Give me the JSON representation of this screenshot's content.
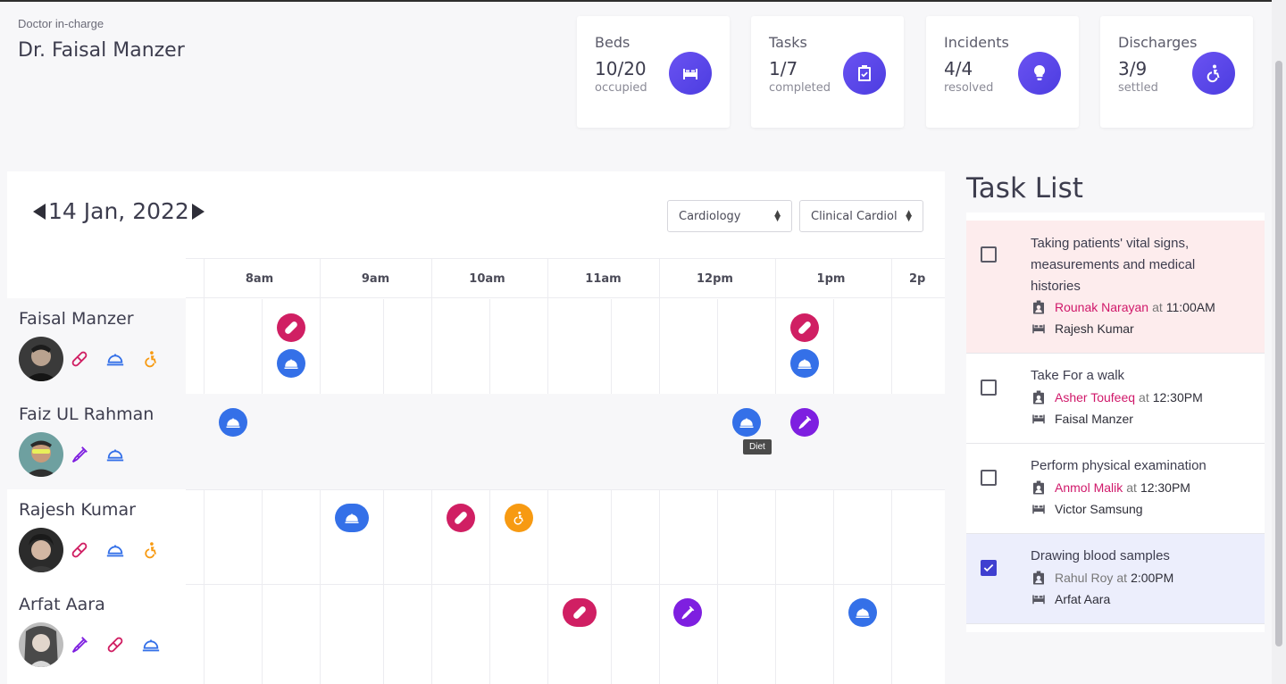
{
  "doctor": {
    "label": "Doctor in-charge",
    "name": "Dr. Faisal Manzer"
  },
  "stats": [
    {
      "title": "Beds",
      "value": "10/20",
      "sub": "occupied",
      "icon": "bed-icon"
    },
    {
      "title": "Tasks",
      "value": "1/7",
      "sub": "completed",
      "icon": "clipboard-check-icon"
    },
    {
      "title": "Incidents",
      "value": "4/4",
      "sub": "resolved",
      "icon": "lightbulb-icon"
    },
    {
      "title": "Discharges",
      "value": "3/9",
      "sub": "settled",
      "icon": "accessible-icon"
    }
  ],
  "schedule": {
    "date": "14 Jan, 2022",
    "department": "Cardiology",
    "unit": "Clinical Cardiol",
    "hours": [
      "8am",
      "9am",
      "10am",
      "11am",
      "12pm",
      "1pm",
      "2p"
    ],
    "patients": [
      {
        "name": "Faisal Manzer",
        "icons": [
          "pill",
          "diet",
          "walk"
        ]
      },
      {
        "name": "Faiz UL Rahman",
        "icons": [
          "lab",
          "diet"
        ]
      },
      {
        "name": "Rajesh Kumar",
        "icons": [
          "pill",
          "diet",
          "walk"
        ]
      },
      {
        "name": "Arfat Aara",
        "icons": [
          "lab",
          "pill",
          "diet"
        ]
      }
    ],
    "tooltip": "Diet"
  },
  "task_list": {
    "title": "Task List",
    "tasks": [
      {
        "title": "Taking patients' vital signs, measurements and medical histories",
        "assignee": "Rounak Narayan",
        "at": "at",
        "time": "11:00AM",
        "patient": "Rajesh Kumar",
        "checked": false
      },
      {
        "title": "Take For a walk",
        "assignee": "Asher Toufeeq",
        "at": "at",
        "time": "12:30PM",
        "patient": "Faisal Manzer",
        "checked": false
      },
      {
        "title": "Perform physical examination",
        "assignee": "Anmol Malik",
        "at": "at",
        "time": "12:30PM",
        "patient": "Victor Samsung",
        "checked": false
      },
      {
        "title": "Drawing blood samples",
        "assignee": "Rahul Roy",
        "at": "at",
        "time": "2:00PM",
        "patient": "Arfat Aara",
        "checked": true
      }
    ]
  },
  "colors": {
    "accent": "#5b45ec",
    "pill": "#d01f63",
    "diet": "#3470e8",
    "lab": "#7e1fe0",
    "walk": "#f79a12",
    "urgent_bg": "#fdeced",
    "done_bg": "#eceefc"
  }
}
